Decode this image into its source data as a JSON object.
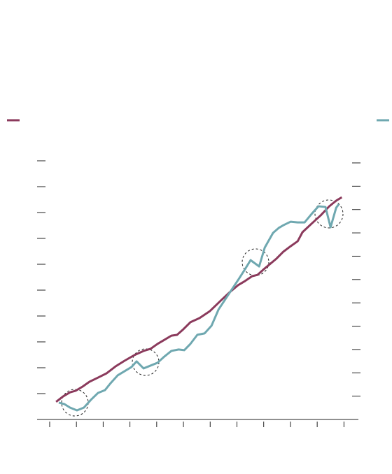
{
  "chart_data": {
    "type": "line",
    "xlim": [
      -0.47,
      11.54
    ],
    "xticks": [
      0,
      1,
      2,
      3,
      4,
      5,
      6,
      7,
      8,
      9,
      10,
      11
    ],
    "ylim": [
      0,
      10
    ],
    "yticks": [
      1,
      2,
      3,
      4,
      5,
      6,
      7,
      8,
      9,
      10
    ],
    "y2lim": [
      0,
      11
    ],
    "y2ticks": [
      1,
      2,
      3,
      4,
      5,
      6,
      7,
      8,
      9,
      10,
      11
    ],
    "grid": false,
    "series": [
      {
        "color": "#8b3a5c",
        "x": [
          0.24,
          0.5,
          0.76,
          0.97,
          1.23,
          1.49,
          1.81,
          2.12,
          2.46,
          2.8,
          3.17,
          3.51,
          3.77,
          4.03,
          4.29,
          4.55,
          4.76,
          5.0,
          5.26,
          5.6,
          5.99,
          6.39,
          6.73,
          7.04,
          7.3,
          7.57,
          7.77,
          8.04,
          8.48,
          8.74,
          9.01,
          9.27,
          9.45,
          9.79,
          10.13,
          10.45,
          10.71,
          10.92
        ],
        "values": [
          0.68,
          0.89,
          1.05,
          1.11,
          1.27,
          1.46,
          1.62,
          1.78,
          2.05,
          2.27,
          2.49,
          2.65,
          2.73,
          2.92,
          3.08,
          3.24,
          3.27,
          3.49,
          3.76,
          3.92,
          4.19,
          4.59,
          4.92,
          5.19,
          5.35,
          5.54,
          5.59,
          5.84,
          6.22,
          6.49,
          6.7,
          6.89,
          7.24,
          7.57,
          7.89,
          8.24,
          8.46,
          8.59
        ]
      },
      {
        "color": "#6fa8b0",
        "axis": "y2",
        "x": [
          0.34,
          0.55,
          0.76,
          1.02,
          1.28,
          1.54,
          1.81,
          2.07,
          2.28,
          2.54,
          2.8,
          3.06,
          3.25,
          3.51,
          3.77,
          4.03,
          4.29,
          4.55,
          4.82,
          5.03,
          5.26,
          5.52,
          5.79,
          6.05,
          6.31,
          6.57,
          6.83,
          7.09,
          7.3,
          7.51,
          7.83,
          8.04,
          8.35,
          8.56,
          8.74,
          9.01,
          9.27,
          9.53,
          9.79,
          10.05,
          10.31,
          10.5,
          10.71,
          10.81
        ],
        "values": [
          0.72,
          0.66,
          0.51,
          0.39,
          0.51,
          0.84,
          1.14,
          1.26,
          1.56,
          1.89,
          2.07,
          2.25,
          2.49,
          2.19,
          2.31,
          2.43,
          2.7,
          2.94,
          3.0,
          2.97,
          3.24,
          3.63,
          3.69,
          4.02,
          4.71,
          5.16,
          5.61,
          6.06,
          6.44,
          6.83,
          6.56,
          7.37,
          8.0,
          8.21,
          8.33,
          8.48,
          8.45,
          8.45,
          8.81,
          9.14,
          9.11,
          8.24,
          9.08,
          9.23
        ]
      }
    ]
  }
}
